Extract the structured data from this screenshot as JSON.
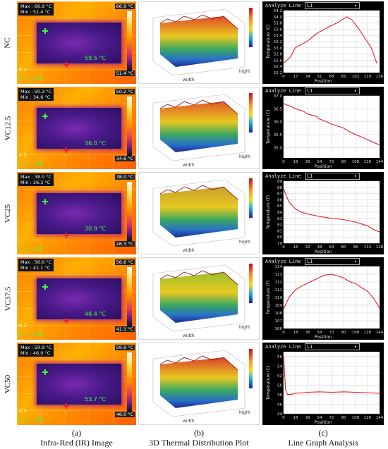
{
  "rows": [
    {
      "label": "NC",
      "ir": {
        "max": "Max : 66.9 °C",
        "min": "Min : 51.4 °C",
        "scale_top": "66.9 °C",
        "scale_bottom": "51.4 °C",
        "spot": "59.5 °C",
        "emissivity": "ε = 1.00",
        "zoom": "x 1"
      },
      "surface_top": "#e04a2a",
      "line": {
        "header": "Analyze Line",
        "select": "L1",
        "ylabel": "Temperature (C)",
        "xlabel": "Position",
        "yticks": [
          "54.2",
          "54.0",
          "53.8",
          "53.6",
          "53.4",
          "53.2",
          "53.0",
          "52.8",
          "52.6",
          "52.4",
          "52.2"
        ],
        "xticks": [
          "0",
          "17",
          "34",
          "51",
          "68",
          "85",
          "102",
          "119",
          "136"
        ],
        "ylim": [
          52.2,
          54.2
        ],
        "xlim": [
          0,
          140
        ],
        "series": [
          [
            0,
            52.5
          ],
          [
            10,
            52.7
          ],
          [
            17,
            53.0
          ],
          [
            25,
            53.1
          ],
          [
            34,
            53.2
          ],
          [
            45,
            53.4
          ],
          [
            51,
            53.5
          ],
          [
            60,
            53.6
          ],
          [
            68,
            53.7
          ],
          [
            78,
            53.8
          ],
          [
            85,
            53.9
          ],
          [
            92,
            54.0
          ],
          [
            100,
            53.9
          ],
          [
            110,
            53.6
          ],
          [
            119,
            53.3
          ],
          [
            128,
            53.0
          ],
          [
            136,
            52.5
          ]
        ]
      }
    },
    {
      "label": "VC12.5",
      "ir": {
        "max": "Max : 50.2 °C",
        "min": "Min : 34.6 °C",
        "scale_top": "50.2 °C",
        "scale_bottom": "34.6 °C",
        "spot": "36.0 °C",
        "emissivity": "ε = 1.00",
        "zoom": "x 1"
      },
      "surface_top": "#e0582a",
      "line": {
        "header": "Analyze Line",
        "select": "L1",
        "ylabel": "Temperature (C)",
        "xlabel": "Position",
        "yticks": [
          "37.0",
          "36.5",
          "36.0",
          "35.5",
          "35.0"
        ],
        "xticks": [
          "0",
          "18",
          "36",
          "54",
          "72",
          "90",
          "108",
          "126",
          "144"
        ],
        "ylim": [
          34.6,
          37.0
        ],
        "xlim": [
          0,
          144
        ],
        "series": [
          [
            0,
            36.7
          ],
          [
            10,
            36.6
          ],
          [
            18,
            36.5
          ],
          [
            30,
            36.4
          ],
          [
            36,
            36.3
          ],
          [
            50,
            36.2
          ],
          [
            54,
            36.1
          ],
          [
            65,
            36.0
          ],
          [
            72,
            35.9
          ],
          [
            85,
            35.8
          ],
          [
            90,
            35.75
          ],
          [
            100,
            35.6
          ],
          [
            108,
            35.5
          ],
          [
            118,
            35.4
          ],
          [
            126,
            35.3
          ],
          [
            135,
            35.2
          ],
          [
            144,
            35.1
          ]
        ]
      }
    },
    {
      "label": "VC25",
      "ir": {
        "max": "Max : 38.0 °C",
        "min": "Min : 26.3 °C",
        "scale_top": "38.0 °C",
        "scale_bottom": "26.3 °C",
        "spot": "30.9 °C",
        "emissivity": "ε = 1.00",
        "zoom": ""
      },
      "surface_top": "#c8a030",
      "line": {
        "header": "Analyze Line",
        "select": "L1",
        "ylabel": "Temperature (F)",
        "xlabel": "Position",
        "yticks": [
          "89",
          "88",
          "87",
          "86",
          "85",
          "84",
          "83",
          "82",
          "81",
          "80",
          "79"
        ],
        "xticks": [
          "0",
          "16",
          "32",
          "48",
          "64",
          "80",
          "96",
          "112",
          "128"
        ],
        "ylim": [
          79,
          89
        ],
        "xlim": [
          0,
          128
        ],
        "series": [
          [
            0,
            87.8
          ],
          [
            4,
            86.5
          ],
          [
            8,
            85.5
          ],
          [
            16,
            84.5
          ],
          [
            24,
            84.0
          ],
          [
            32,
            83.7
          ],
          [
            48,
            83.3
          ],
          [
            64,
            83.0
          ],
          [
            80,
            82.8
          ],
          [
            96,
            82.4
          ],
          [
            112,
            81.8
          ],
          [
            120,
            81.2
          ],
          [
            128,
            80.8
          ]
        ]
      }
    },
    {
      "label": "VC37.5",
      "ir": {
        "max": "Max : 56.6 °C",
        "min": "Min : 41.1 °C",
        "scale_top": "56.6 °C",
        "scale_bottom": "41.1 °C",
        "spot": "48.4 °C",
        "emissivity": "ε = 1.00",
        "zoom": "x 1"
      },
      "surface_top": "#9abf30",
      "line": {
        "header": "Analyze Line",
        "select": "L1",
        "ylabel": "Temperature (F)",
        "xlabel": "Position",
        "yticks": [
          "114",
          "113",
          "112",
          "111",
          "110",
          "109",
          "108",
          "107",
          "106"
        ],
        "xticks": [
          "0",
          "18",
          "36",
          "54",
          "72",
          "90",
          "108",
          "126",
          "144"
        ],
        "ylim": [
          106,
          114
        ],
        "xlim": [
          0,
          144
        ],
        "series": [
          [
            0,
            108.5
          ],
          [
            8,
            110.0
          ],
          [
            18,
            111.0
          ],
          [
            30,
            111.6
          ],
          [
            45,
            112.2
          ],
          [
            54,
            112.6
          ],
          [
            63,
            112.9
          ],
          [
            72,
            113.0
          ],
          [
            81,
            112.8
          ],
          [
            90,
            112.5
          ],
          [
            100,
            112.0
          ],
          [
            108,
            111.8
          ],
          [
            118,
            111.2
          ],
          [
            126,
            110.8
          ],
          [
            136,
            109.8
          ],
          [
            144,
            108.6
          ]
        ]
      }
    },
    {
      "label": "VC50",
      "ir": {
        "max": "Max : 59.9 °C",
        "min": "Min : 46.0 °C",
        "scale_top": "59.9 °C",
        "scale_bottom": "46.0 °C",
        "spot": "53.7 °C",
        "emissivity": "ε = 1.00",
        "zoom": "x 1"
      },
      "surface_top": "#d8402a",
      "line": {
        "header": "Analyze Line",
        "select": "L1",
        "ylabel": "Temperature (C)",
        "xlabel": "Position",
        "yticks": [
          "56",
          "54",
          "52",
          "50",
          "48",
          "46",
          "44"
        ],
        "xticks": [
          "0",
          "18",
          "36",
          "54",
          "72",
          "90",
          "108",
          "126",
          "144"
        ],
        "ylim": [
          44,
          57
        ],
        "xlim": [
          0,
          144
        ],
        "series": [
          [
            0,
            56.0
          ],
          [
            3,
            49.0
          ],
          [
            6,
            48.0
          ],
          [
            12,
            48.1
          ],
          [
            18,
            48.3
          ],
          [
            30,
            48.4
          ],
          [
            36,
            48.5
          ],
          [
            54,
            48.6
          ],
          [
            72,
            48.5
          ],
          [
            90,
            48.6
          ],
          [
            108,
            48.5
          ],
          [
            126,
            48.4
          ],
          [
            144,
            48.3
          ]
        ]
      }
    }
  ],
  "captions": {
    "a_letter": "(a)",
    "a_title": "Infra-Red (IR) Image",
    "b_letter": "(b)",
    "b_title": "3D Thermal Distribution Plot",
    "c_letter": "(c)",
    "c_title": "Line Graph Analysis"
  },
  "plot3d_axes": {
    "width": "width",
    "hight": "hight"
  }
}
